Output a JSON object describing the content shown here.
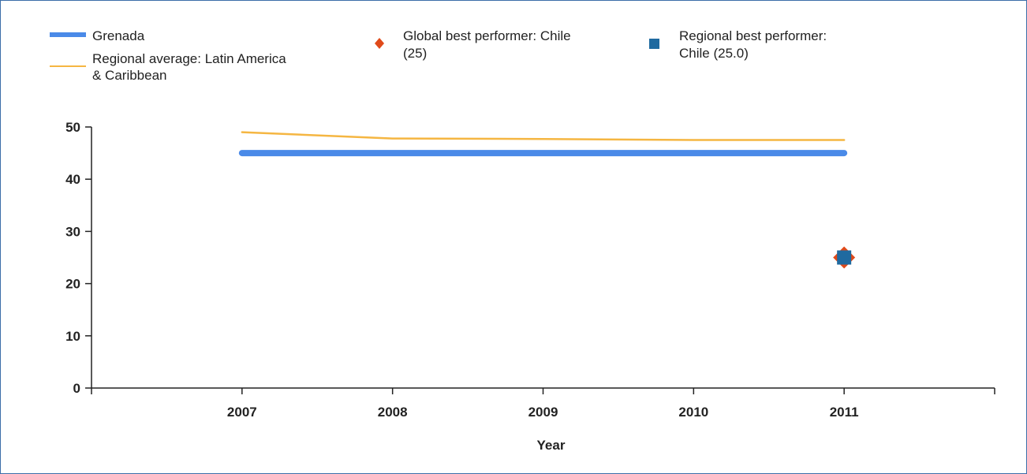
{
  "chart_data": {
    "type": "line",
    "title": "",
    "xlabel": "Year",
    "ylabel": "",
    "x": [
      2007,
      2008,
      2009,
      2010,
      2011
    ],
    "xlim": [
      2006,
      2012
    ],
    "ylim": [
      0,
      50
    ],
    "yticks": [
      0,
      10,
      20,
      30,
      40,
      50
    ],
    "grid": false,
    "legend_position": "top",
    "series": [
      {
        "name": "Grenada",
        "kind": "line",
        "color": "#4a8ae8",
        "values": [
          45,
          45,
          45,
          45,
          45
        ]
      },
      {
        "name": "Regional average: Latin America & Caribbean",
        "name_lines": [
          "Regional average: Latin America",
          "& Caribbean"
        ],
        "kind": "line",
        "color": "#f5b642",
        "values": [
          49.0,
          47.8,
          47.7,
          47.5,
          47.5
        ]
      },
      {
        "name": "Global best performer: Chile (25)",
        "name_lines": [
          "Global best performer: Chile",
          "(25)"
        ],
        "kind": "marker",
        "marker": "diamond",
        "color": "#e04a1a",
        "points": [
          {
            "x": 2011,
            "y": 25
          }
        ]
      },
      {
        "name": "Regional best performer: Chile (25.0)",
        "name_lines": [
          "Regional best performer:",
          "Chile (25.0)"
        ],
        "kind": "marker",
        "marker": "square",
        "color": "#1f6aa0",
        "points": [
          {
            "x": 2011,
            "y": 25
          }
        ]
      }
    ]
  }
}
